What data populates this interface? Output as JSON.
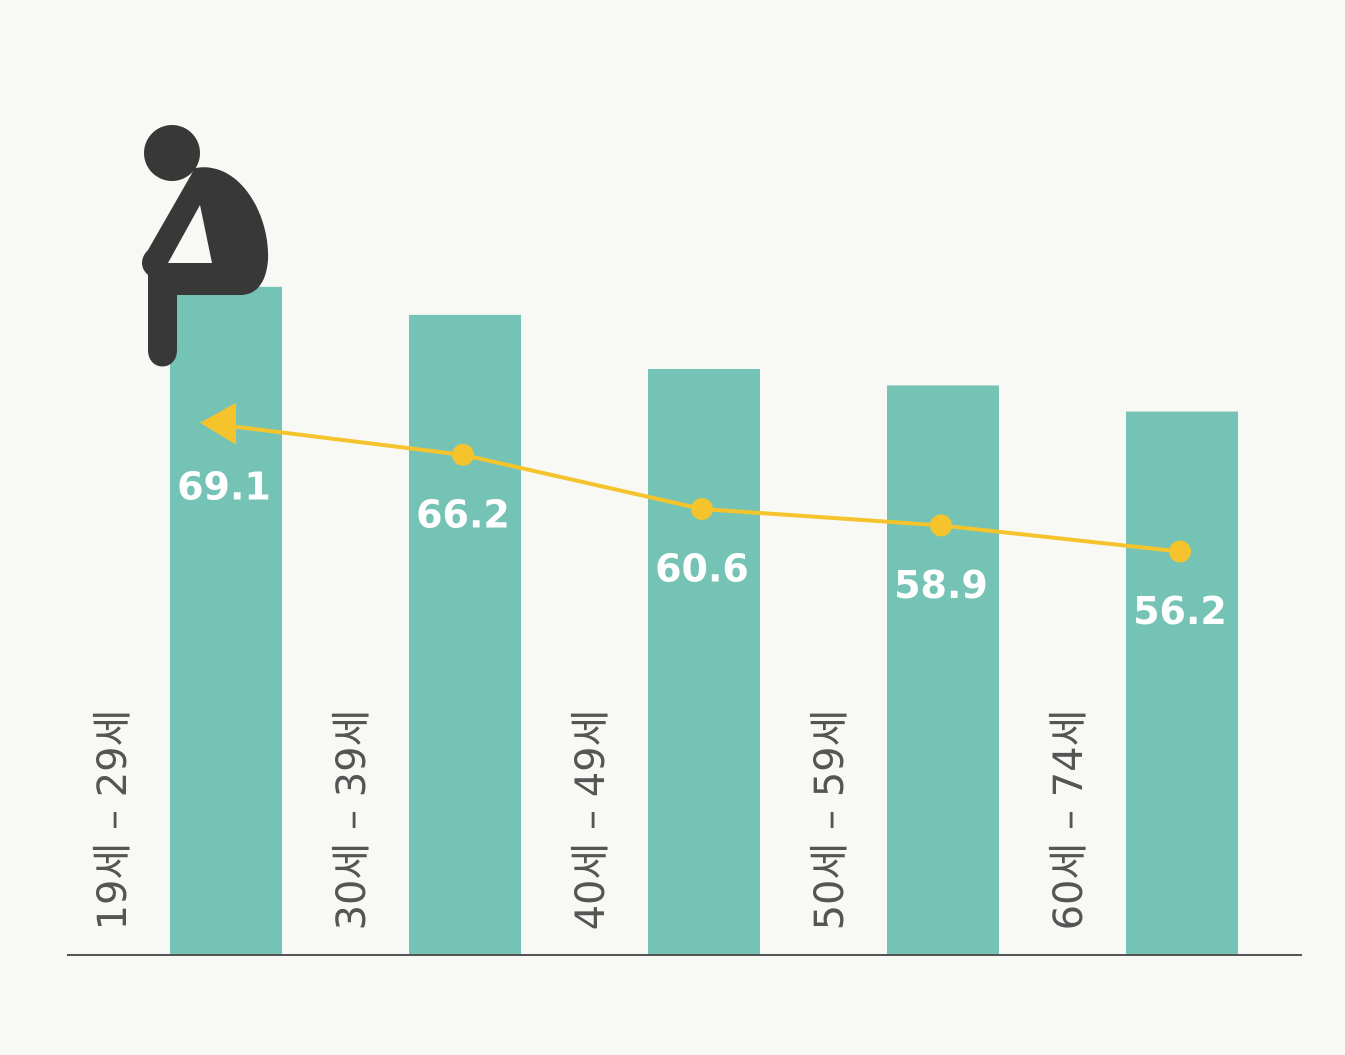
{
  "chart_data": {
    "type": "bar",
    "categories": [
      "19세 – 29세",
      "30세 – 39세",
      "40세 – 49세",
      "50세 – 59세",
      "60세 – 74세"
    ],
    "values": [
      69.1,
      66.2,
      60.6,
      58.9,
      56.2
    ],
    "color": "#74c3b5",
    "line_color": "#f5c32c",
    "trend_line": true
  }
}
